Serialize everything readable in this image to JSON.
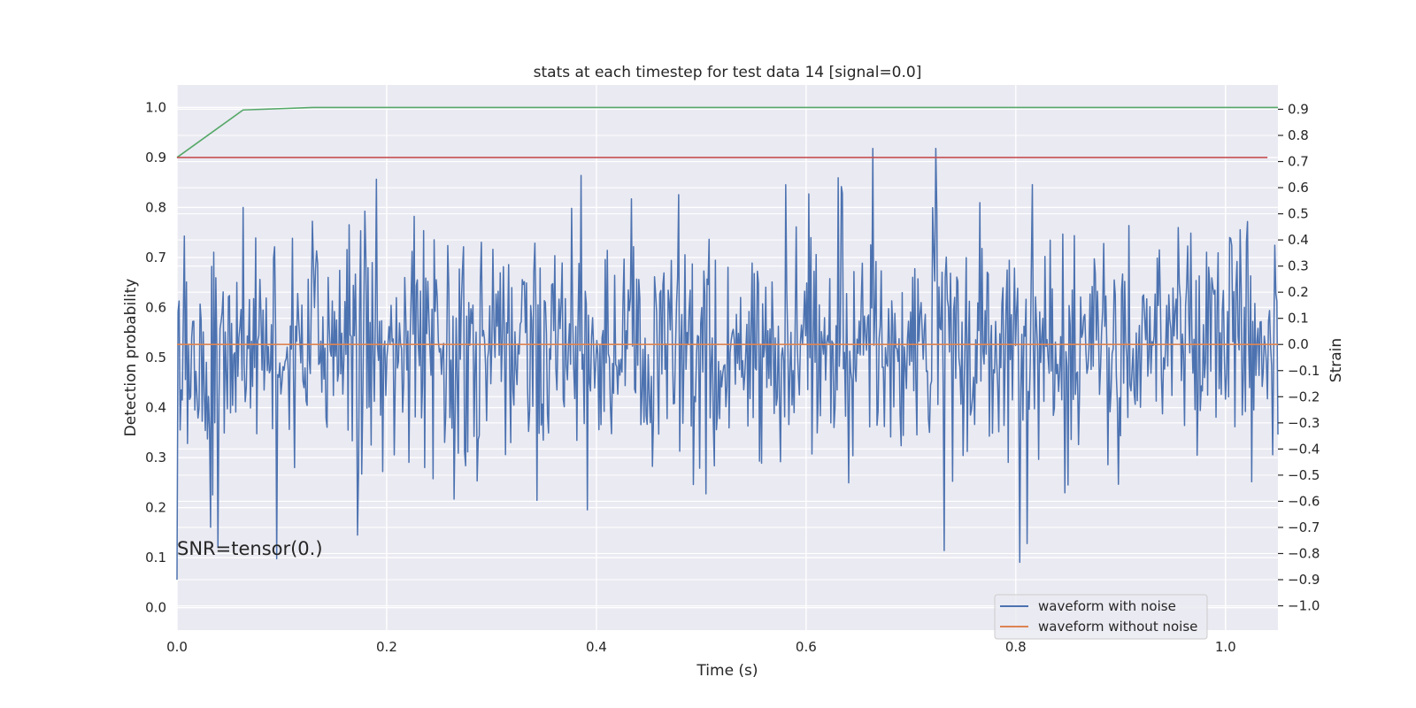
{
  "chart_data": {
    "type": "line",
    "title": "stats at each timestep for test data 14 [signal=0.0]",
    "xlabel": "Time (s)",
    "ylabel": "Detection probability",
    "y2label": "Strain",
    "xlim": [
      0.0,
      1.05
    ],
    "ylim": [
      -0.045,
      1.045
    ],
    "y2lim": [
      -1.093,
      0.993
    ],
    "xticks": [
      "0.0",
      "0.2",
      "0.4",
      "0.6",
      "0.8",
      "1.0"
    ],
    "yticks": [
      "0.0",
      "0.1",
      "0.2",
      "0.3",
      "0.4",
      "0.5",
      "0.6",
      "0.7",
      "0.8",
      "0.9",
      "1.0"
    ],
    "y2ticks": [
      "−1.0",
      "−0.9",
      "−0.8",
      "−0.7",
      "−0.6",
      "−0.5",
      "−0.4",
      "−0.3",
      "−0.2",
      "−0.1",
      "0.0",
      "0.1",
      "0.2",
      "0.3",
      "0.4",
      "0.5",
      "0.6",
      "0.7",
      "0.8",
      "0.9"
    ],
    "grid": true,
    "legend_position": "lower-right",
    "annotation": "SNR=tensor(0.)",
    "series": [
      {
        "name": "waveform with noise",
        "axis": "right",
        "color": "#4c72b0",
        "samples": 1050,
        "x_range": [
          0.0,
          1.05
        ],
        "amplitude_std": 0.24,
        "amplitude_range": [
          -0.95,
          0.75
        ],
        "description_values": [
          -0.1,
          0.5,
          -0.3,
          0.2,
          0.1,
          -0.2,
          0.3,
          -0.4,
          0.4,
          -0.1
        ]
      },
      {
        "name": "waveform without noise",
        "axis": "right",
        "color": "#dd8452",
        "x": [
          0.0,
          1.05
        ],
        "y": [
          0.0,
          0.0
        ]
      },
      {
        "axis": "left",
        "color": "#55a868",
        "x": [
          0.0,
          0.063,
          0.13,
          1.05
        ],
        "y": [
          0.9,
          0.995,
          1.0,
          1.0
        ]
      },
      {
        "axis": "left",
        "color": "#c44e52",
        "x": [
          0.0,
          1.04
        ],
        "y": [
          0.9,
          0.9
        ]
      }
    ]
  }
}
